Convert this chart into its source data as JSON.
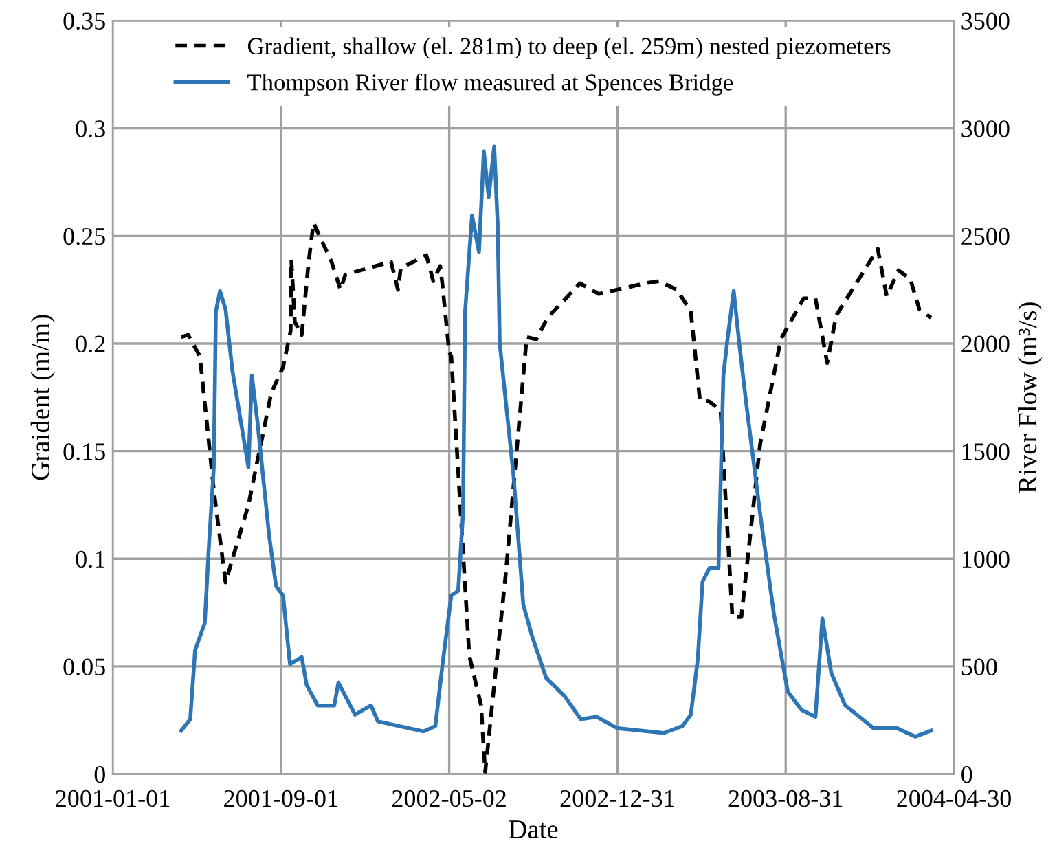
{
  "chart_data": {
    "type": "line",
    "xlabel": "Date",
    "ylabel": "Graident (m/m)",
    "y2label": "River Flow (m³/s)",
    "xlim": [
      "2001-01-01",
      "2004-04-30"
    ],
    "xticks": [
      "2001-01-01",
      "2001-09-01",
      "2002-05-02",
      "2002-12-31",
      "2003-08-31",
      "2004-04-30"
    ],
    "ylim": [
      0,
      0.35
    ],
    "yticks": [
      0,
      0.05,
      0.1,
      0.15,
      0.2,
      0.25,
      0.3,
      0.35
    ],
    "y2lim": [
      0,
      3500
    ],
    "y2ticks": [
      0,
      500,
      1000,
      1500,
      2000,
      2500,
      3000,
      3500
    ],
    "grid": true,
    "legend": "top",
    "series": [
      {
        "name": "Gradient, shallow (el. 281m) to deep (el. 259m) nested piezometers",
        "color": "#000000",
        "line_style": "dashed",
        "axis": "y",
        "x": [
          "2001-04-10",
          "2001-04-20",
          "2001-05-07",
          "2001-05-27",
          "2001-06-13",
          "2001-07-16",
          "2001-08-18",
          "2001-09-04",
          "2001-09-15",
          "2001-09-16",
          "2001-09-21",
          "2001-10-01",
          "2001-10-08",
          "2001-10-11",
          "2001-10-18",
          "2001-11-13",
          "2001-11-26",
          "2001-12-03",
          "2002-02-07",
          "2002-02-17",
          "2002-02-21",
          "2002-03-30",
          "2002-04-09",
          "2002-04-19",
          "2002-04-22",
          "2002-05-02",
          "2002-05-05",
          "2002-05-31",
          "2002-06-17",
          "2002-06-23",
          "2002-07-23",
          "2002-08-22",
          "2002-09-05",
          "2002-09-21",
          "2002-11-07",
          "2002-12-04",
          "2003-02-09",
          "2003-03-01",
          "2003-03-27",
          "2003-04-16",
          "2003-04-29",
          "2003-05-13",
          "2003-05-29",
          "2003-06-15",
          "2003-06-28",
          "2003-07-25",
          "2003-08-24",
          "2003-09-26",
          "2003-10-13",
          "2003-10-30",
          "2003-11-12",
          "2003-12-09",
          "2004-01-11",
          "2004-01-24",
          "2004-02-10",
          "2004-02-27",
          "2004-03-11",
          "2004-03-28"
        ],
        "values": [
          0.203,
          0.204,
          0.194,
          0.132,
          0.089,
          0.125,
          0.177,
          0.189,
          0.206,
          0.239,
          0.21,
          0.204,
          0.228,
          0.238,
          0.256,
          0.238,
          0.225,
          0.232,
          0.238,
          0.225,
          0.235,
          0.241,
          0.229,
          0.236,
          0.228,
          0.196,
          0.194,
          0.055,
          0.032,
          0.001,
          0.094,
          0.203,
          0.202,
          0.212,
          0.228,
          0.223,
          0.228,
          0.229,
          0.225,
          0.215,
          0.174,
          0.173,
          0.169,
          0.073,
          0.073,
          0.153,
          0.202,
          0.221,
          0.221,
          0.191,
          0.213,
          0.227,
          0.244,
          0.222,
          0.234,
          0.23,
          0.216,
          0.212
        ]
      },
      {
        "name": "Thompson River flow measured at Spences Bridge",
        "color": "#2e75b6",
        "line_style": "solid",
        "axis": "y2",
        "x": [
          "2001-04-10",
          "2001-04-23",
          "2001-04-30",
          "2001-05-14",
          "2001-05-20",
          "2001-05-27",
          "2001-05-30",
          "2001-06-05",
          "2001-06-13",
          "2001-06-23",
          "2001-06-29",
          "2001-07-16",
          "2001-07-21",
          "2001-07-29",
          "2001-08-15",
          "2001-08-25",
          "2001-09-04",
          "2001-09-14",
          "2001-10-01",
          "2001-10-08",
          "2001-10-24",
          "2001-11-17",
          "2001-11-23",
          "2001-12-17",
          "2002-01-09",
          "2002-01-19",
          "2002-03-26",
          "2002-04-12",
          "2002-04-22",
          "2002-05-05",
          "2002-05-15",
          "2002-05-22",
          "2002-05-25",
          "2002-06-04",
          "2002-06-14",
          "2002-06-21",
          "2002-06-28",
          "2002-07-06",
          "2002-07-11",
          "2002-07-14",
          "2002-08-03",
          "2002-08-17",
          "2002-08-30",
          "2002-09-19",
          "2002-10-16",
          "2002-11-08",
          "2002-12-01",
          "2002-12-31",
          "2003-03-08",
          "2003-04-04",
          "2003-04-16",
          "2003-04-26",
          "2003-05-03",
          "2003-05-13",
          "2003-05-26",
          "2003-06-02",
          "2003-06-08",
          "2003-06-17",
          "2003-06-25",
          "2003-07-05",
          "2003-07-25",
          "2003-08-14",
          "2003-09-03",
          "2003-09-23",
          "2003-10-13",
          "2003-10-23",
          "2003-11-05",
          "2003-11-25",
          "2004-01-05",
          "2004-02-08",
          "2004-03-05",
          "2004-03-28"
        ],
        "values": [
          202,
          255,
          575,
          702,
          1063,
          1425,
          2149,
          2244,
          2159,
          1872,
          1755,
          1425,
          1851,
          1638,
          1106,
          872,
          830,
          511,
          543,
          415,
          319,
          319,
          425,
          276,
          319,
          245,
          198,
          223,
          500,
          830,
          851,
          1213,
          2149,
          2595,
          2425,
          2893,
          2681,
          2915,
          2553,
          2000,
          1383,
          787,
          638,
          447,
          361,
          255,
          266,
          213,
          191,
          223,
          276,
          532,
          894,
          957,
          957,
          1851,
          2021,
          2244,
          2000,
          1723,
          1213,
          744,
          383,
          298,
          266,
          723,
          468,
          319,
          213,
          213,
          174,
          202
        ]
      }
    ]
  }
}
